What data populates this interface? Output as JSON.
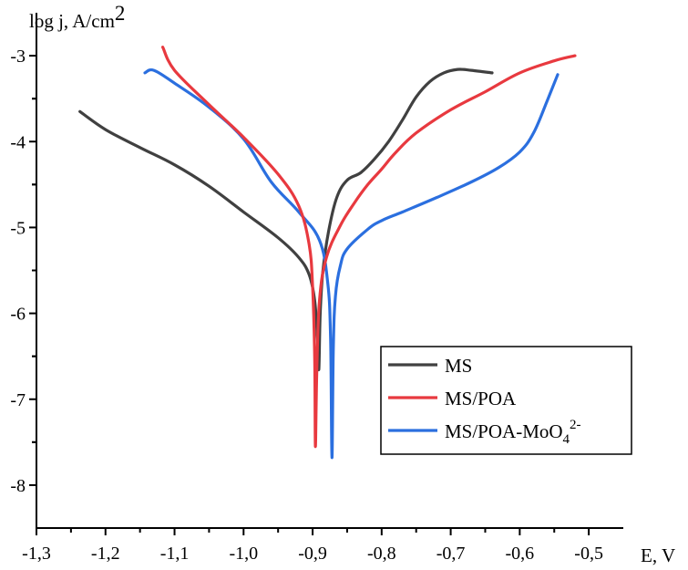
{
  "chart_data": {
    "type": "line",
    "xlabel": "E, V",
    "ylabel": "log j, A/cm",
    "ylabel_sup": "2",
    "xlim": [
      -1.3,
      -0.45
    ],
    "ylim": [
      -8.5,
      -2.5
    ],
    "x_ticks": [
      "-1,3",
      "-1,2",
      "-1,1",
      "-1,0",
      "-0,9",
      "-0,8",
      "-0,7",
      "-0,6",
      "-0,5"
    ],
    "x_tick_values": [
      -1.3,
      -1.2,
      -1.1,
      -1.0,
      -0.9,
      -0.8,
      -0.7,
      -0.6,
      -0.5
    ],
    "y_ticks": [
      "-3",
      "-4",
      "-5",
      "-6",
      "-7",
      "-8"
    ],
    "y_tick_values": [
      -3,
      -4,
      -5,
      -6,
      -7,
      -8
    ],
    "grid": false,
    "legend_position": "bottom-right",
    "series": [
      {
        "name": "MS",
        "color": "#404040",
        "points": [
          [
            -1.237,
            -3.65
          ],
          [
            -1.2,
            -3.86
          ],
          [
            -1.15,
            -4.07
          ],
          [
            -1.1,
            -4.27
          ],
          [
            -1.05,
            -4.52
          ],
          [
            -1.0,
            -4.82
          ],
          [
            -0.95,
            -5.12
          ],
          [
            -0.92,
            -5.35
          ],
          [
            -0.905,
            -5.55
          ],
          [
            -0.897,
            -5.85
          ],
          [
            -0.893,
            -6.3
          ],
          [
            -0.891,
            -6.65
          ],
          [
            -0.889,
            -6.0
          ],
          [
            -0.885,
            -5.5
          ],
          [
            -0.877,
            -5.05
          ],
          [
            -0.865,
            -4.65
          ],
          [
            -0.85,
            -4.45
          ],
          [
            -0.83,
            -4.36
          ],
          [
            -0.81,
            -4.2
          ],
          [
            -0.79,
            -4.0
          ],
          [
            -0.77,
            -3.75
          ],
          [
            -0.75,
            -3.48
          ],
          [
            -0.73,
            -3.3
          ],
          [
            -0.71,
            -3.2
          ],
          [
            -0.69,
            -3.16
          ],
          [
            -0.67,
            -3.17
          ],
          [
            -0.64,
            -3.2
          ]
        ]
      },
      {
        "name": "MS/POA",
        "color": "#e8393f",
        "points": [
          [
            -1.117,
            -2.9
          ],
          [
            -1.1,
            -3.17
          ],
          [
            -1.05,
            -3.57
          ],
          [
            -1.0,
            -3.95
          ],
          [
            -0.95,
            -4.38
          ],
          [
            -0.92,
            -4.75
          ],
          [
            -0.905,
            -5.2
          ],
          [
            -0.9,
            -5.7
          ],
          [
            -0.897,
            -6.5
          ],
          [
            -0.896,
            -7.55
          ],
          [
            -0.894,
            -6.7
          ],
          [
            -0.89,
            -5.85
          ],
          [
            -0.88,
            -5.35
          ],
          [
            -0.86,
            -4.98
          ],
          [
            -0.84,
            -4.72
          ],
          [
            -0.82,
            -4.5
          ],
          [
            -0.8,
            -4.32
          ],
          [
            -0.78,
            -4.13
          ],
          [
            -0.75,
            -3.9
          ],
          [
            -0.7,
            -3.63
          ],
          [
            -0.65,
            -3.42
          ],
          [
            -0.6,
            -3.2
          ],
          [
            -0.55,
            -3.06
          ],
          [
            -0.52,
            -3.0
          ]
        ]
      },
      {
        "name": "MS/POA-MoO",
        "name_sub": "4",
        "name_sup": "2-",
        "color": "#2b6fdf",
        "points": [
          [
            -1.143,
            -3.2
          ],
          [
            -1.13,
            -3.17
          ],
          [
            -1.1,
            -3.32
          ],
          [
            -1.05,
            -3.6
          ],
          [
            -1.0,
            -3.97
          ],
          [
            -0.96,
            -4.47
          ],
          [
            -0.92,
            -4.82
          ],
          [
            -0.89,
            -5.15
          ],
          [
            -0.878,
            -5.65
          ],
          [
            -0.874,
            -6.3
          ],
          [
            -0.872,
            -7.68
          ],
          [
            -0.87,
            -6.4
          ],
          [
            -0.867,
            -5.8
          ],
          [
            -0.86,
            -5.45
          ],
          [
            -0.85,
            -5.25
          ],
          [
            -0.82,
            -5.02
          ],
          [
            -0.8,
            -4.92
          ],
          [
            -0.77,
            -4.82
          ],
          [
            -0.72,
            -4.65
          ],
          [
            -0.67,
            -4.47
          ],
          [
            -0.63,
            -4.3
          ],
          [
            -0.6,
            -4.12
          ],
          [
            -0.58,
            -3.9
          ],
          [
            -0.56,
            -3.52
          ],
          [
            -0.545,
            -3.22
          ]
        ]
      }
    ]
  }
}
